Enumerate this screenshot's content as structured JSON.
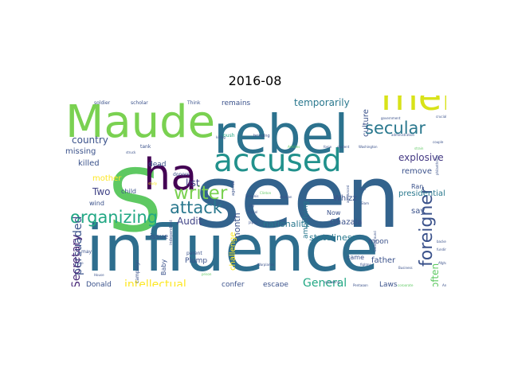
{
  "title": "2016-08",
  "chart_data": {
    "type": "wordcloud",
    "title": "2016-08",
    "words": [
      {
        "text": "seen",
        "weight": 100,
        "color": "#33638d",
        "rot": 0
      },
      {
        "text": "influence",
        "weight": 74,
        "color": "#2e6e8e",
        "rot": 0
      },
      {
        "text": "S",
        "weight": 100,
        "color": "#5ec962",
        "rot": 0
      },
      {
        "text": "rebel",
        "weight": 62,
        "color": "#2c728e",
        "rot": 0
      },
      {
        "text": "Maude",
        "weight": 52,
        "color": "#7ad151",
        "rot": 0
      },
      {
        "text": "ha",
        "weight": 50,
        "color": "#440154",
        "rot": 0
      },
      {
        "text": "men",
        "weight": 44,
        "color": "#d8e219",
        "rot": 0
      },
      {
        "text": "accused",
        "weight": 36,
        "color": "#21918c",
        "rot": 0
      },
      {
        "text": "writer",
        "weight": 21,
        "color": "#7ad151",
        "rot": 0
      },
      {
        "text": "organizing",
        "weight": 19,
        "color": "#22a884",
        "rot": 0
      },
      {
        "text": "attack",
        "weight": 19,
        "color": "#2a788e",
        "rot": 0
      },
      {
        "text": "foreigner",
        "weight": 20,
        "color": "#3b528b",
        "rot": 90
      },
      {
        "text": "secular",
        "weight": 19,
        "color": "#2a788e",
        "rot": 0
      },
      {
        "text": "intellectual",
        "weight": 13,
        "color": "#fde725",
        "rot": 0
      },
      {
        "text": "persuaded",
        "weight": 13,
        "color": "#3b528b",
        "rot": 90
      },
      {
        "text": "Secretary",
        "weight": 13,
        "color": "#482878",
        "rot": 90
      },
      {
        "text": "General",
        "weight": 13,
        "color": "#22a884",
        "rot": 0
      },
      {
        "text": "temporarily",
        "weight": 11,
        "color": "#2a788e",
        "rot": 0
      },
      {
        "text": "explosive",
        "weight": 11,
        "color": "#443983",
        "rot": 0
      },
      {
        "text": "country",
        "weight": 11,
        "color": "#3b528b",
        "rot": 0
      },
      {
        "text": "list",
        "weight": 11,
        "color": "#414487",
        "rot": 0
      },
      {
        "text": "Audit",
        "weight": 11,
        "color": "#414487",
        "rot": 0
      },
      {
        "text": "Two",
        "weight": 11,
        "color": "#414487",
        "rot": 0
      },
      {
        "text": "stateliness",
        "weight": 10,
        "color": "#2a788e",
        "rot": 0
      },
      {
        "text": "nationality",
        "weight": 10,
        "color": "#2a788e",
        "rot": 0
      },
      {
        "text": "often",
        "weight": 11,
        "color": "#5ec962",
        "rot": 90
      },
      {
        "text": "culture",
        "weight": 9,
        "color": "#3b528b",
        "rot": 90
      },
      {
        "text": "month",
        "weight": 10,
        "color": "#3b528b",
        "rot": 90
      },
      {
        "text": "challenge",
        "weight": 9,
        "color": "#fde725",
        "rot": 90
      },
      {
        "text": "presidential",
        "weight": 9,
        "color": "#2a788e",
        "rot": 0
      },
      {
        "text": "amplifying",
        "weight": 8,
        "color": "#2a788e",
        "rot": 90
      },
      {
        "text": "Ghazala",
        "weight": 9,
        "color": "#3b528b",
        "rot": 0
      },
      {
        "text": "mother",
        "weight": 9,
        "color": "#fde725",
        "rot": 0
      },
      {
        "text": "missing",
        "weight": 9,
        "color": "#3b528b",
        "rot": 0
      },
      {
        "text": "killed",
        "weight": 9,
        "color": "#3b528b",
        "rot": 0
      },
      {
        "text": "remove",
        "weight": 9,
        "color": "#3b528b",
        "rot": 0
      },
      {
        "text": "father",
        "weight": 9,
        "color": "#3b528b",
        "rot": 0
      },
      {
        "text": "Whizz",
        "weight": 9,
        "color": "#3b528b",
        "rot": 0
      },
      {
        "text": "moon",
        "weight": 8,
        "color": "#3b528b",
        "rot": 0
      },
      {
        "text": "say",
        "weight": 9,
        "color": "#3b528b",
        "rot": 0
      },
      {
        "text": "remains",
        "weight": 8,
        "color": "#3b528b",
        "rot": 0
      },
      {
        "text": "Plump",
        "weight": 8,
        "color": "#3b528b",
        "rot": 0
      },
      {
        "text": "confer",
        "weight": 8,
        "color": "#3b528b",
        "rot": 0
      },
      {
        "text": "escape",
        "weight": 8,
        "color": "#3b528b",
        "rot": 0
      },
      {
        "text": "Laws",
        "weight": 8,
        "color": "#3b528b",
        "rot": 0
      },
      {
        "text": "Donald",
        "weight": 8,
        "color": "#3b528b",
        "rot": 0
      },
      {
        "text": "issue",
        "weight": 8,
        "color": "#3b528b",
        "rot": 0
      },
      {
        "text": "dead",
        "weight": 8,
        "color": "#3b528b",
        "rot": 0
      },
      {
        "text": "child",
        "weight": 7,
        "color": "#3b528b",
        "rot": 0
      },
      {
        "text": "wind",
        "weight": 7,
        "color": "#3b528b",
        "rot": 0
      },
      {
        "text": "Ran",
        "weight": 7,
        "color": "#3b528b",
        "rot": 0
      },
      {
        "text": "Now",
        "weight": 7,
        "color": "#3b528b",
        "rot": 0
      },
      {
        "text": "came",
        "weight": 7,
        "color": "#3b528b",
        "rot": 0
      },
      {
        "text": "Baby",
        "weight": 7,
        "color": "#3b528b",
        "rot": 90
      },
      {
        "text": "parent",
        "weight": 6,
        "color": "#3b528b",
        "rot": 0
      },
      {
        "text": "soldier",
        "weight": 6,
        "color": "#3b528b",
        "rot": 0
      },
      {
        "text": "scholar",
        "weight": 6,
        "color": "#3b528b",
        "rot": 0
      },
      {
        "text": "Think",
        "weight": 6,
        "color": "#3b528b",
        "rot": 0
      },
      {
        "text": "tank",
        "weight": 6,
        "color": "#3b528b",
        "rot": 0
      },
      {
        "text": "donors",
        "weight": 6,
        "color": "#3b528b",
        "rot": 0
      },
      {
        "text": "push",
        "weight": 6,
        "color": "#22a884",
        "rot": 0
      },
      {
        "text": "bringing",
        "weight": 5,
        "color": "#3b528b",
        "rot": 0
      },
      {
        "text": "may",
        "weight": 6,
        "color": "#3b528b",
        "rot": 0
      },
      {
        "text": "campaign",
        "weight": 6,
        "color": "#3b528b",
        "rot": 90
      },
      {
        "text": "agenda",
        "weight": 5,
        "color": "#3b528b",
        "rot": 90
      },
      {
        "text": "independent",
        "weight": 5,
        "color": "#3b528b",
        "rot": 90
      },
      {
        "text": "Washington",
        "weight": 3,
        "color": "#3b528b",
        "rot": 0
      },
      {
        "text": "Pentagon",
        "weight": 3,
        "color": "#3b528b",
        "rot": 0
      },
      {
        "text": "Business",
        "weight": 3,
        "color": "#3b528b",
        "rot": 0
      },
      {
        "text": "Clinton",
        "weight": 3,
        "color": "#5ec962",
        "rot": 0
      },
      {
        "text": "government",
        "weight": 3,
        "color": "#3b528b",
        "rot": 0
      },
      {
        "text": "administration",
        "weight": 3,
        "color": "#3b528b",
        "rot": 0
      },
      {
        "text": "battleground",
        "weight": 3,
        "color": "#3b528b",
        "rot": 90
      },
      {
        "text": "Afghan",
        "weight": 3,
        "color": "#3b528b",
        "rot": 0
      },
      {
        "text": "fighter",
        "weight": 3,
        "color": "#3b528b",
        "rot": 0
      },
      {
        "text": "School",
        "weight": 3,
        "color": "#3b528b",
        "rot": 0
      },
      {
        "text": "Yemenis",
        "weight": 3,
        "color": "#3b528b",
        "rot": 0
      },
      {
        "text": "student",
        "weight": 3,
        "color": "#3b528b",
        "rot": 0
      },
      {
        "text": "force",
        "weight": 3,
        "color": "#3b528b",
        "rot": 0
      },
      {
        "text": "Achilles",
        "weight": 3,
        "color": "#5ec962",
        "rot": 0
      },
      {
        "text": "killing",
        "weight": 3,
        "color": "#3b528b",
        "rot": 0
      },
      {
        "text": "struck",
        "weight": 3,
        "color": "#3b528b",
        "rot": 0
      },
      {
        "text": "House",
        "weight": 3,
        "color": "#3b528b",
        "rot": 0
      },
      {
        "text": "sprawling",
        "weight": 3,
        "color": "#3b528b",
        "rot": 0
      },
      {
        "text": "Warplanes",
        "weight": 3,
        "color": "#3b528b",
        "rot": 0
      },
      {
        "text": "backed",
        "weight": 3,
        "color": "#3b528b",
        "rot": 0
      },
      {
        "text": "funding",
        "weight": 3,
        "color": "#3b528b",
        "rot": 0
      },
      {
        "text": "corporate",
        "weight": 3,
        "color": "#5ec962",
        "rot": 0
      },
      {
        "text": "city",
        "weight": 3,
        "color": "#3b528b",
        "rot": 0
      },
      {
        "text": "Japan",
        "weight": 3,
        "color": "#3b528b",
        "rot": 0
      },
      {
        "text": "prison",
        "weight": 3,
        "color": "#5ec962",
        "rot": 0
      },
      {
        "text": "crucial",
        "weight": 3,
        "color": "#3b528b",
        "rot": 0
      },
      {
        "text": "couple",
        "weight": 3,
        "color": "#3b528b",
        "rot": 0
      },
      {
        "text": "Arabian",
        "weight": 3,
        "color": "#3b528b",
        "rot": 0
      },
      {
        "text": "strain",
        "weight": 3,
        "color": "#5ec962",
        "rot": 0
      },
      {
        "text": "study",
        "weight": 3,
        "color": "#fde725",
        "rot": 0
      },
      {
        "text": "pro",
        "weight": 3,
        "color": "#3b528b",
        "rot": 0
      },
      {
        "text": "Ana",
        "weight": 3,
        "color": "#3b528b",
        "rot": 0
      },
      {
        "text": "Lost",
        "weight": 3,
        "color": "#3b528b",
        "rot": 0
      },
      {
        "text": "Slam",
        "weight": 3,
        "color": "#3b528b",
        "rot": 0
      },
      {
        "text": "philanthropy",
        "weight": 3,
        "color": "#3b528b",
        "rot": 90
      },
      {
        "text": "announced",
        "weight": 3,
        "color": "#3b528b",
        "rot": 90
      }
    ]
  }
}
